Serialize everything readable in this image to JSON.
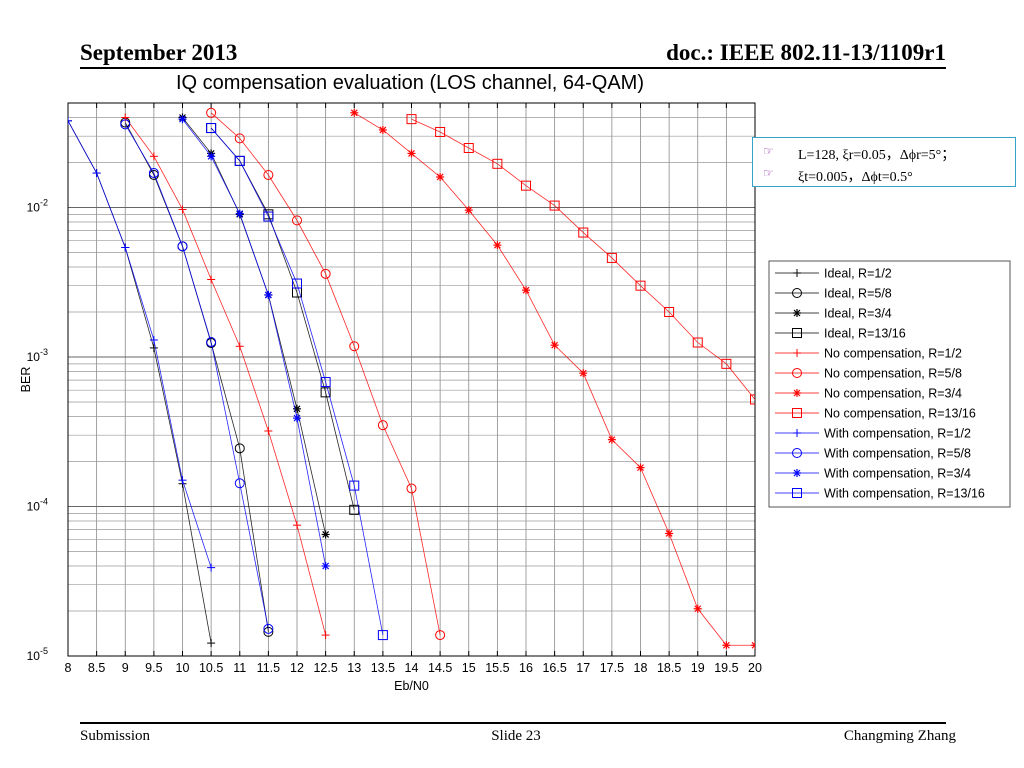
{
  "header": {
    "left": "September 2013",
    "right": "doc.: IEEE 802.11-13/1109r1"
  },
  "footer": {
    "left": "Submission",
    "center": "Slide 23",
    "right": "Changming Zhang"
  },
  "notes": [
    {
      "icon": "pointing-hand-icon",
      "text": "L=128, ξr=0.05，Δϕr=5°；"
    },
    {
      "icon": "pointing-hand-icon",
      "text": "ξt=0.005，Δϕt=0.5°"
    }
  ],
  "colors": {
    "ideal": "#000000",
    "nocomp": "#ff0000",
    "withcomp": "#0000ff",
    "note_border": "#35a3c8"
  },
  "chart_data": {
    "type": "line",
    "title": "IQ compensation evaluation (LOS channel, 64-QAM)",
    "xlabel": "Eb/N0",
    "ylabel": "BER",
    "xlim": [
      8,
      20
    ],
    "ylim": [
      1e-05,
      0.05
    ],
    "yscale": "log",
    "grid": true,
    "legend_position": "right",
    "x_ticks": [
      "8",
      "8.5",
      "9",
      "9.5",
      "10",
      "10.5",
      "11",
      "11.5",
      "12",
      "12.5",
      "13",
      "13.5",
      "14",
      "14.5",
      "15",
      "15.5",
      "16",
      "16.5",
      "17",
      "17.5",
      "18",
      "18.5",
      "19",
      "19.5",
      "20"
    ],
    "y_ticks": [
      {
        "base": "10",
        "exp": "-2"
      },
      {
        "base": "10",
        "exp": "-3"
      },
      {
        "base": "10",
        "exp": "-4"
      },
      {
        "base": "10",
        "exp": "-5"
      }
    ],
    "series": [
      {
        "name": "Ideal, R=1/2",
        "color": "#000000",
        "marker": "plus",
        "x": [
          8,
          8.5,
          9,
          9.5,
          10,
          10.5
        ],
        "y": [
          0.038,
          0.017,
          0.0054,
          0.00115,
          0.000142,
          1.22e-05
        ]
      },
      {
        "name": "Ideal, R=5/8",
        "color": "#000000",
        "marker": "circle",
        "x": [
          9,
          9.5,
          10,
          10.5,
          11,
          11.5
        ],
        "y": [
          0.037,
          0.0165,
          0.0055,
          0.00124,
          0.000245,
          1.45e-05
        ]
      },
      {
        "name": "Ideal, R=3/4",
        "color": "#000000",
        "marker": "star",
        "x": [
          10,
          10.5,
          11,
          11.5,
          12,
          12.5
        ],
        "y": [
          0.04,
          0.023,
          0.009,
          0.0026,
          0.00045,
          6.5e-05
        ]
      },
      {
        "name": "Ideal, R=13/16",
        "color": "#000000",
        "marker": "square",
        "x": [
          10.5,
          11,
          11.5,
          12,
          12.5,
          13
        ],
        "y": [
          0.034,
          0.0205,
          0.009,
          0.0027,
          0.00058,
          9.5e-05
        ]
      },
      {
        "name": "No compensation, R=1/2",
        "color": "#ff0000",
        "marker": "plus",
        "x": [
          9,
          9.5,
          10,
          10.5,
          11,
          11.5,
          12,
          12.5
        ],
        "y": [
          0.04,
          0.022,
          0.0097,
          0.0033,
          0.00118,
          0.00032,
          7.5e-05,
          1.38e-05
        ]
      },
      {
        "name": "No compensation, R=5/8",
        "color": "#ff0000",
        "marker": "circle",
        "x": [
          10.5,
          11,
          11.5,
          12,
          12.5,
          13,
          13.5,
          14,
          14.5
        ],
        "y": [
          0.043,
          0.029,
          0.0165,
          0.0082,
          0.0036,
          0.00118,
          0.00035,
          0.000132,
          1.38e-05
        ]
      },
      {
        "name": "No compensation, R=3/4",
        "color": "#ff0000",
        "marker": "star",
        "x": [
          13,
          13.5,
          14,
          14.5,
          15,
          15.5,
          16,
          16.5,
          17,
          17.5,
          18,
          18.5,
          19,
          19.5,
          20
        ],
        "y": [
          0.043,
          0.033,
          0.023,
          0.016,
          0.0096,
          0.0056,
          0.0028,
          0.0012,
          0.00078,
          0.00028,
          0.000182,
          6.6e-05,
          2.07e-05,
          1.18e-05,
          1.18e-05
        ]
      },
      {
        "name": "No compensation, R=13/16",
        "color": "#ff0000",
        "marker": "square",
        "x": [
          14,
          14.5,
          15,
          15.5,
          16,
          16.5,
          17,
          17.5,
          18,
          18.5,
          19,
          19.5,
          20
        ],
        "y": [
          0.039,
          0.032,
          0.025,
          0.0196,
          0.014,
          0.0103,
          0.0068,
          0.0046,
          0.003,
          0.002,
          0.00125,
          0.0009,
          0.00052
        ]
      },
      {
        "name": "With compensation, R=1/2",
        "color": "#0000ff",
        "marker": "plus",
        "x": [
          8,
          8.5,
          9,
          9.5,
          10,
          10.5
        ],
        "y": [
          0.038,
          0.017,
          0.0054,
          0.0013,
          0.00015,
          3.9e-05
        ]
      },
      {
        "name": "With compensation, R=5/8",
        "color": "#0000ff",
        "marker": "circle",
        "x": [
          9,
          9.5,
          10,
          10.5,
          11,
          11.5
        ],
        "y": [
          0.036,
          0.017,
          0.0055,
          0.00126,
          0.000143,
          1.52e-05
        ]
      },
      {
        "name": "With compensation, R=3/4",
        "color": "#0000ff",
        "marker": "star",
        "x": [
          10,
          10.5,
          11,
          11.5,
          12,
          12.5
        ],
        "y": [
          0.039,
          0.022,
          0.0091,
          0.0026,
          0.00039,
          4e-05
        ]
      },
      {
        "name": "With compensation, R=13/16",
        "color": "#0000ff",
        "marker": "square",
        "x": [
          10.5,
          11,
          11.5,
          12,
          12.5,
          13,
          13.5
        ],
        "y": [
          0.034,
          0.0205,
          0.0087,
          0.0031,
          0.00068,
          0.000138,
          1.38e-05
        ]
      }
    ]
  }
}
